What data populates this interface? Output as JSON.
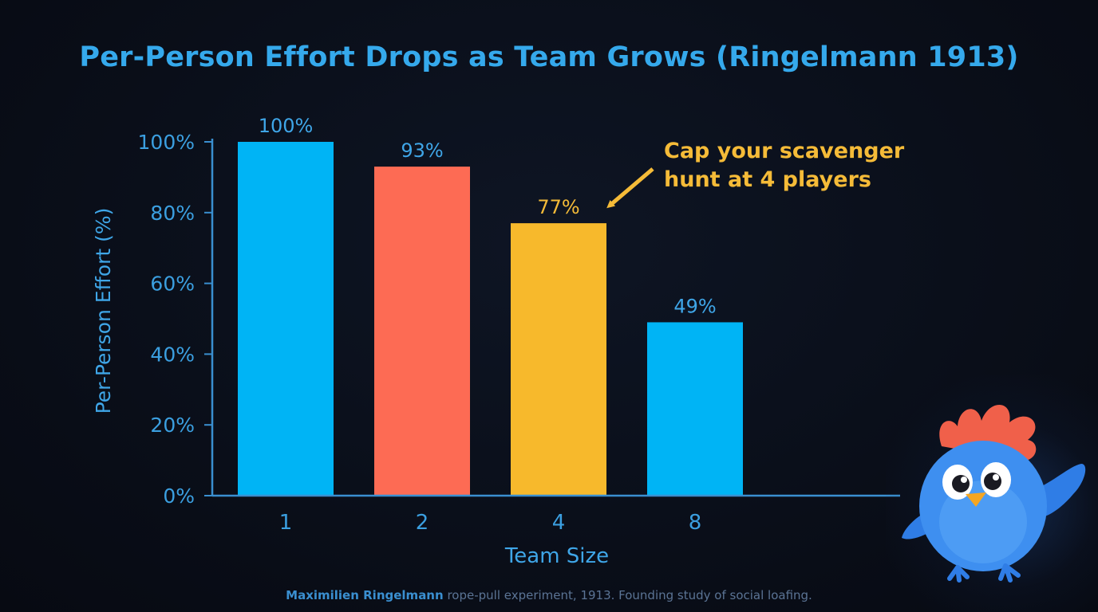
{
  "chart_data": {
    "type": "bar",
    "title": "Per-Person Effort Drops as Team Grows (Ringelmann 1913)",
    "xlabel": "Team Size",
    "ylabel": "Per-Person Effort (%)",
    "categories": [
      "1",
      "2",
      "4",
      "8"
    ],
    "values": [
      100,
      93,
      77,
      49
    ],
    "value_labels": [
      "100%",
      "93%",
      "77%",
      "49%"
    ],
    "bar_colors": [
      "#00b4f5",
      "#fd6b54",
      "#f7b92c",
      "#00b4f5"
    ],
    "ylim": [
      0,
      100
    ],
    "yticks": [
      0,
      20,
      40,
      60,
      80,
      100
    ],
    "ytick_labels": [
      "0%",
      "20%",
      "40%",
      "60%",
      "80%",
      "100%"
    ],
    "grid": false,
    "annotation": {
      "text": "Cap your scavenger hunt at 4 players",
      "target_category": "4",
      "color": "#f5bb38"
    }
  },
  "colors": {
    "title": "#35a9ec",
    "axis": "#3a8fd0",
    "tick_label": "#3b9fe0",
    "value_label": "#3fa6e8",
    "background": "#0a0f1a"
  },
  "footnote": {
    "strong": "Maximilien Ringelmann",
    "rest": " rope-pull experiment, 1913. Founding study of social loafing."
  },
  "mascot": {
    "icon": "blue-bird-mascot-icon"
  }
}
